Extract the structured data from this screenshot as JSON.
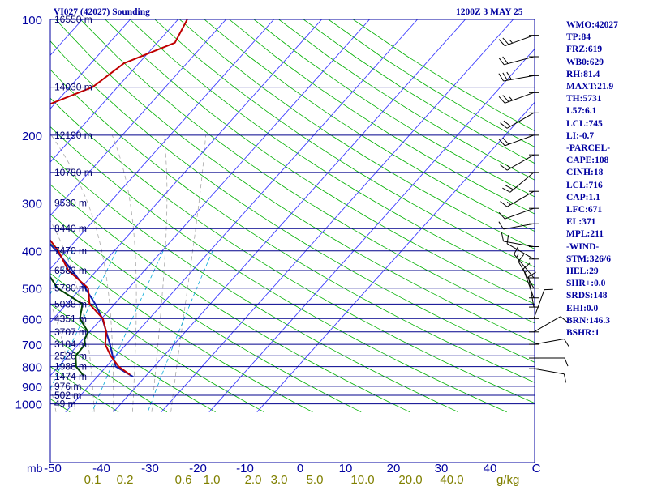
{
  "chart_data": {
    "type": "skew-t sounding",
    "title": "VI027 (42027) Sounding",
    "time": "1200Z  3 MAY 25",
    "pressure_unit_label": "mb",
    "mixing_ratio_unit": "g/kg",
    "pressure_ticks": [
      "100",
      "200",
      "300",
      "400",
      "500",
      "600",
      "700",
      "800",
      "900",
      "1000"
    ],
    "pressure_values": [
      100,
      200,
      300,
      400,
      500,
      600,
      700,
      800,
      900,
      1000
    ],
    "height_levels": [
      {
        "p": 100,
        "label": "16550 m"
      },
      {
        "p": 150,
        "label": "14030 m"
      },
      {
        "p": 200,
        "label": "12190 m"
      },
      {
        "p": 250,
        "label": "10780 m"
      },
      {
        "p": 300,
        "label": "9530 m"
      },
      {
        "p": 350,
        "label": "8440 m"
      },
      {
        "p": 400,
        "label": "7470 m"
      },
      {
        "p": 450,
        "label": "6582 m"
      },
      {
        "p": 500,
        "label": "5780 m"
      },
      {
        "p": 550,
        "label": "5038 m"
      },
      {
        "p": 600,
        "label": "4351 m"
      },
      {
        "p": 650,
        "label": "3707 m"
      },
      {
        "p": 700,
        "label": "3104 m"
      },
      {
        "p": 750,
        "label": "2526 m"
      },
      {
        "p": 800,
        "label": "1986 m"
      },
      {
        "p": 850,
        "label": "1474 m"
      },
      {
        "p": 900,
        "label": "976 m"
      },
      {
        "p": 950,
        "label": "502 m"
      },
      {
        "p": 1000,
        "label": "49 m"
      }
    ],
    "temperature_ticks": [
      "-50",
      "-40",
      "-30",
      "-20",
      "-10",
      "0",
      "10",
      "20",
      "30",
      "40",
      "C"
    ],
    "temperature_values": [
      -50,
      -40,
      -30,
      -20,
      -10,
      0,
      10,
      20,
      30,
      40
    ],
    "mixing_ratio_ticks": [
      "0.1",
      "0.2",
      "0.6",
      "1.0",
      "2.0",
      "3.0",
      "5.0",
      "10.0",
      "20.0",
      "40.0"
    ],
    "mixing_ratio_values": [
      0.1,
      0.2,
      0.6,
      1.0,
      2.0,
      3.0,
      5.0,
      10.0,
      20.0,
      40.0
    ],
    "temperature_profile": [
      {
        "p": 840,
        "t": 26.5
      },
      {
        "p": 800,
        "t": 22.6
      },
      {
        "p": 750,
        "t": 18.9
      },
      {
        "p": 700,
        "t": 15.6
      },
      {
        "p": 650,
        "t": 13.5
      },
      {
        "p": 600,
        "t": 10.3
      },
      {
        "p": 550,
        "t": 4.8
      },
      {
        "p": 500,
        "t": 1.5
      },
      {
        "p": 450,
        "t": -5.9
      },
      {
        "p": 400,
        "t": -11.7
      },
      {
        "p": 350,
        "t": -19.4
      },
      {
        "p": 300,
        "t": -27.7
      },
      {
        "p": 250,
        "t": -38.3
      },
      {
        "p": 210,
        "t": -49.5
      },
      {
        "p": 180,
        "t": -50.3
      },
      {
        "p": 170,
        "t": -42.3
      },
      {
        "p": 150,
        "t": -35.2
      },
      {
        "p": 130,
        "t": -33.1
      },
      {
        "p": 115,
        "t": -26.3
      },
      {
        "p": 100,
        "t": -28.1
      }
    ],
    "dewpoint_profile": [
      {
        "p": 845,
        "t": 17.0
      },
      {
        "p": 800,
        "t": 13.7
      },
      {
        "p": 750,
        "t": 11.6
      },
      {
        "p": 700,
        "t": 11.4
      },
      {
        "p": 680,
        "t": 10.4
      },
      {
        "p": 650,
        "t": 9.7
      },
      {
        "p": 600,
        "t": 5.5
      },
      {
        "p": 550,
        "t": 3.3
      },
      {
        "p": 500,
        "t": -4.9
      },
      {
        "p": 450,
        "t": -10.6
      },
      {
        "p": 400,
        "t": -18.1
      },
      {
        "p": 350,
        "t": -32.3
      },
      {
        "p": 320,
        "t": -38.0
      },
      {
        "p": 280,
        "t": -48.6
      },
      {
        "p": 250,
        "t": -51.4
      },
      {
        "p": 210,
        "t": -57.2
      },
      {
        "p": 180,
        "t": -77.0
      },
      {
        "p": 150,
        "t": -79.7
      },
      {
        "p": 125,
        "t": -82.9
      },
      {
        "p": 100,
        "t": -92.6
      }
    ],
    "parcel_profile": [
      {
        "p": 850,
        "t": 27.5
      },
      {
        "p": 800,
        "t": 22.0
      },
      {
        "p": 750,
        "t": 19.3
      },
      {
        "p": 700,
        "t": 16.6
      },
      {
        "p": 650,
        "t": 13.5
      },
      {
        "p": 600,
        "t": 10.2
      },
      {
        "p": 550,
        "t": 6.0
      },
      {
        "p": 500,
        "t": 0.9
      },
      {
        "p": 450,
        "t": -5.1
      },
      {
        "p": 400,
        "t": -12.1
      },
      {
        "p": 350,
        "t": -20.6
      },
      {
        "p": 300,
        "t": -30.3
      },
      {
        "p": 250,
        "t": -42.0
      },
      {
        "p": 200,
        "t": -56.9
      },
      {
        "p": 160,
        "t": -71.8
      },
      {
        "p": 130,
        "t": -86.0
      },
      {
        "p": 110,
        "t": -96.0
      }
    ],
    "wind_barbs": [
      {
        "p": 110,
        "dir": 250,
        "spd": 25
      },
      {
        "p": 125,
        "dir": 255,
        "spd": 20
      },
      {
        "p": 140,
        "dir": 260,
        "spd": 30
      },
      {
        "p": 155,
        "dir": 250,
        "spd": 25
      },
      {
        "p": 175,
        "dir": 240,
        "spd": 20
      },
      {
        "p": 200,
        "dir": 250,
        "spd": 20
      },
      {
        "p": 225,
        "dir": 240,
        "spd": 15
      },
      {
        "p": 250,
        "dir": 230,
        "spd": 20
      },
      {
        "p": 280,
        "dir": 240,
        "spd": 15
      },
      {
        "p": 310,
        "dir": 250,
        "spd": 10
      },
      {
        "p": 340,
        "dir": 260,
        "spd": 10
      },
      {
        "p": 390,
        "dir": 280,
        "spd": 10
      },
      {
        "p": 420,
        "dir": 300,
        "spd": 10
      },
      {
        "p": 470,
        "dir": 320,
        "spd": 15
      },
      {
        "p": 500,
        "dir": 330,
        "spd": 10
      },
      {
        "p": 530,
        "dir": 340,
        "spd": 15
      },
      {
        "p": 560,
        "dir": 350,
        "spd": 10
      },
      {
        "p": 600,
        "dir": 20,
        "spd": 10
      },
      {
        "p": 650,
        "dir": 60,
        "spd": 10
      },
      {
        "p": 700,
        "dir": 80,
        "spd": 10
      },
      {
        "p": 760,
        "dir": 90,
        "spd": 10
      },
      {
        "p": 810,
        "dir": 100,
        "spd": 10
      }
    ],
    "ylim": [
      100,
      1000
    ],
    "xlim": [
      -50,
      50
    ]
  },
  "indices": [
    "WMO:42027",
    "TP:84",
    "FRZ:619",
    "WB0:629",
    "RH:81.4",
    "MAXT:21.9",
    "TH:5731",
    "L57:6.1",
    "LCL:745",
    "LI:-0.7",
    "-PARCEL-",
    "CAPE:108",
    "CINH:18",
    "LCL:716",
    "CAP:1.1",
    "LFC:671",
    "EL:371",
    "MPL:211",
    "-WIND-",
    "STM:326/6",
    "HEL:29",
    "SHR+:0.0",
    "SRDS:148",
    "EHI:0.0",
    "BRN:146.3",
    "BSHR:1"
  ],
  "colors": {
    "frame": "#0000a0",
    "isobar": "#00008b",
    "isotherm": "#3c3cff",
    "dry_adiabat": "#00b000",
    "moist_adiabat": "#a8a8a8",
    "mixing_ratio": "#00a8d8",
    "temperature": "#c00000",
    "dewpoint": "#004400",
    "parcel": "#1020b0",
    "height_text": "#00006e",
    "mr_text": "#808000",
    "wind": "#000000"
  }
}
